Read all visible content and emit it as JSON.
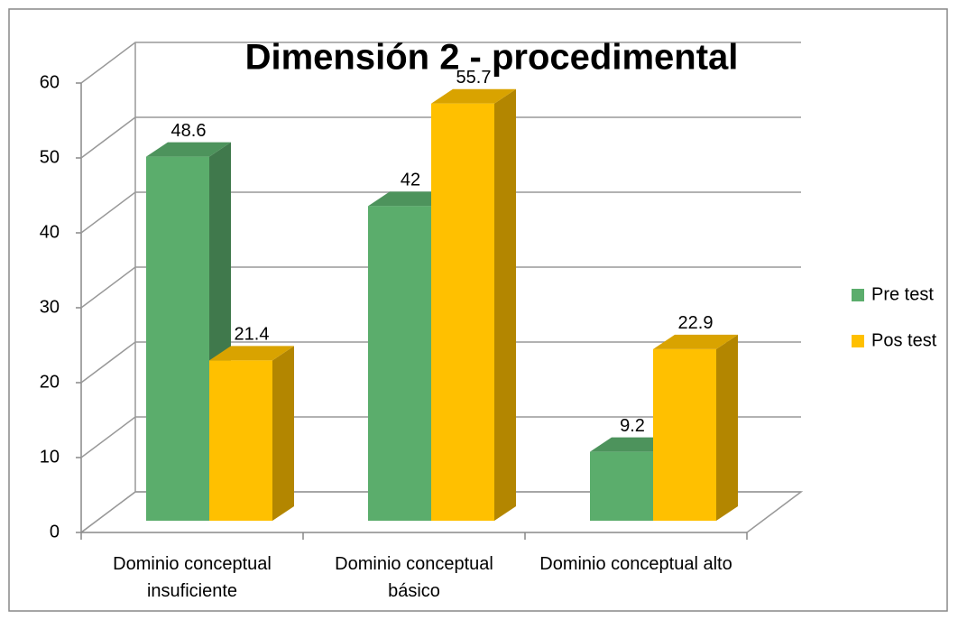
{
  "chart_data": {
    "type": "bar3d",
    "title": "Dimensión 2 - procedimental",
    "categories": [
      "Dominio conceptual insuficiente",
      "Dominio conceptual básico",
      "Dominio conceptual alto"
    ],
    "series": [
      {
        "name": "Pre test",
        "color": "#5bad6c",
        "values": [
          48.6,
          42,
          9.2
        ]
      },
      {
        "name": "Pos test",
        "color": "#ffc000",
        "values": [
          21.4,
          55.7,
          22.9
        ]
      }
    ],
    "ylim": [
      0,
      60
    ],
    "yticks": [
      0,
      10,
      20,
      30,
      40,
      50,
      60
    ],
    "grid": true,
    "legend": "right"
  }
}
